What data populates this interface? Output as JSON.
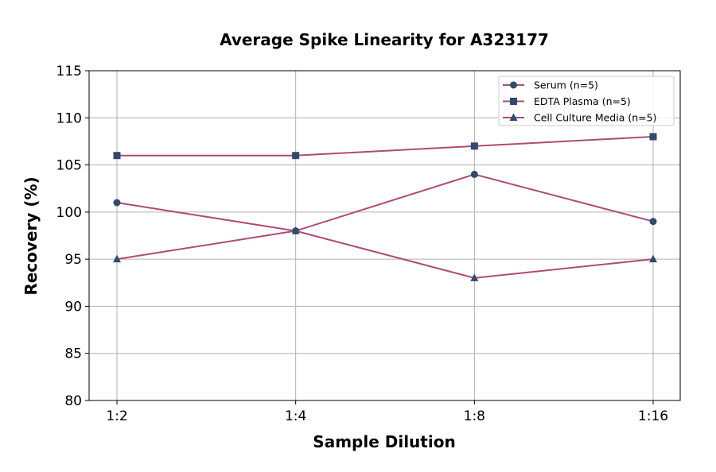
{
  "chart_data": {
    "type": "line",
    "title": "Average Spike Linearity for A323177",
    "xlabel": "Sample Dilution",
    "ylabel": "Recovery (%)",
    "categories": [
      "1:2",
      "1:4",
      "1:8",
      "1:16"
    ],
    "ylim": [
      80,
      115
    ],
    "yticks": [
      80,
      85,
      90,
      95,
      100,
      105,
      110,
      115
    ],
    "grid": true,
    "legend_position": "top-right",
    "line_color": "#b04a72",
    "marker_color": "#2e4a6e",
    "series": [
      {
        "name": "Serum (n=5)",
        "marker": "circle",
        "values": [
          101,
          98,
          104,
          99
        ]
      },
      {
        "name": "EDTA Plasma (n=5)",
        "marker": "square",
        "values": [
          106,
          106,
          107,
          108
        ]
      },
      {
        "name": "Cell Culture Media (n=5)",
        "marker": "triangle",
        "values": [
          95,
          98,
          93,
          95
        ]
      }
    ]
  }
}
